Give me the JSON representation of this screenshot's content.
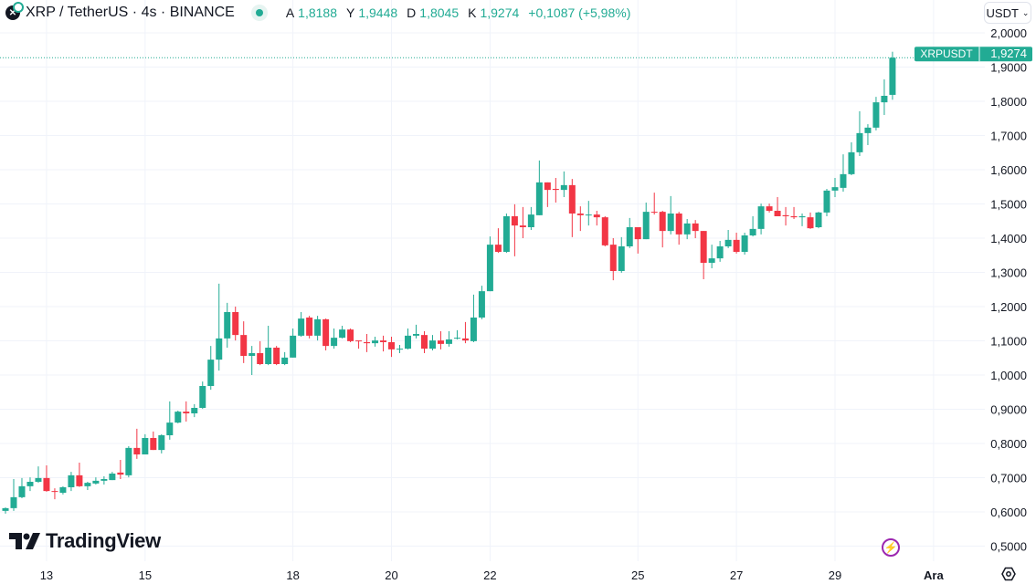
{
  "header": {
    "symbol_icon": "xrp-logo-icon",
    "title": "XRP / TetherUS · 4s · BINANCE",
    "status": "market-open-dot",
    "ohlc": [
      {
        "key": "A",
        "value": "1,8188"
      },
      {
        "key": "Y",
        "value": "1,9448"
      },
      {
        "key": "D",
        "value": "1,8045"
      },
      {
        "key": "K",
        "value": "1,9274"
      }
    ],
    "change": "+0,1087 (+5,98%)"
  },
  "currency_button": {
    "label": "USDT",
    "icon": "chevron-down-icon"
  },
  "brand": {
    "name": "TradingView"
  },
  "colors": {
    "up": "#22ab94",
    "down": "#f23645",
    "price_line": "#22ab94",
    "grid": "#f0f3fa",
    "accent": "#9c27b0"
  },
  "price_label": {
    "symbol": "XRPUSDT",
    "value": "1,9274"
  },
  "footer": {
    "settings_icon": "gear-icon",
    "bolt_icon": "lightning-icon"
  },
  "chart_data": {
    "type": "candlestick",
    "interval": "4s",
    "ohlc_order": [
      "open",
      "high",
      "low",
      "close"
    ],
    "candles": [
      [
        0.603,
        0.613,
        0.595,
        0.611
      ],
      [
        0.611,
        0.696,
        0.603,
        0.643
      ],
      [
        0.643,
        0.699,
        0.64,
        0.675
      ],
      [
        0.675,
        0.701,
        0.661,
        0.688
      ],
      [
        0.688,
        0.733,
        0.685,
        0.699
      ],
      [
        0.699,
        0.736,
        0.659,
        0.661
      ],
      [
        0.661,
        0.669,
        0.637,
        0.659
      ],
      [
        0.656,
        0.675,
        0.651,
        0.672
      ],
      [
        0.672,
        0.717,
        0.661,
        0.707
      ],
      [
        0.707,
        0.744,
        0.673,
        0.675
      ],
      [
        0.675,
        0.688,
        0.664,
        0.685
      ],
      [
        0.683,
        0.701,
        0.68,
        0.691
      ],
      [
        0.691,
        0.704,
        0.68,
        0.696
      ],
      [
        0.693,
        0.717,
        0.693,
        0.712
      ],
      [
        0.715,
        0.752,
        0.696,
        0.709
      ],
      [
        0.707,
        0.792,
        0.701,
        0.787
      ],
      [
        0.787,
        0.843,
        0.755,
        0.768
      ],
      [
        0.768,
        0.827,
        0.768,
        0.816
      ],
      [
        0.816,
        0.835,
        0.781,
        0.781
      ],
      [
        0.781,
        0.827,
        0.771,
        0.824
      ],
      [
        0.824,
        0.923,
        0.811,
        0.861
      ],
      [
        0.861,
        0.896,
        0.859,
        0.893
      ],
      [
        0.893,
        0.923,
        0.864,
        0.888
      ],
      [
        0.888,
        0.915,
        0.877,
        0.904
      ],
      [
        0.904,
        0.981,
        0.901,
        0.968
      ],
      [
        0.968,
        1.085,
        0.957,
        1.045
      ],
      [
        1.045,
        1.267,
        1.013,
        1.107
      ],
      [
        1.107,
        1.211,
        1.08,
        1.184
      ],
      [
        1.184,
        1.2,
        1.101,
        1.117
      ],
      [
        1.117,
        1.157,
        1.035,
        1.056
      ],
      [
        1.056,
        1.085,
        1.0,
        1.064
      ],
      [
        1.064,
        1.099,
        1.029,
        1.032
      ],
      [
        1.032,
        1.144,
        1.029,
        1.08
      ],
      [
        1.08,
        1.085,
        1.029,
        1.032
      ],
      [
        1.032,
        1.067,
        1.029,
        1.051
      ],
      [
        1.051,
        1.136,
        1.051,
        1.115
      ],
      [
        1.115,
        1.184,
        1.112,
        1.165
      ],
      [
        1.168,
        1.173,
        1.107,
        1.115
      ],
      [
        1.115,
        1.173,
        1.101,
        1.163
      ],
      [
        1.163,
        1.165,
        1.072,
        1.085
      ],
      [
        1.085,
        1.136,
        1.077,
        1.109
      ],
      [
        1.109,
        1.144,
        1.107,
        1.133
      ],
      [
        1.133,
        1.136,
        1.096,
        1.099
      ],
      [
        1.101,
        1.101,
        1.077,
        1.099
      ],
      [
        1.096,
        1.12,
        1.067,
        1.093
      ],
      [
        1.093,
        1.112,
        1.083,
        1.101
      ],
      [
        1.101,
        1.115,
        1.069,
        1.096
      ],
      [
        1.096,
        1.112,
        1.053,
        1.075
      ],
      [
        1.075,
        1.088,
        1.064,
        1.077
      ],
      [
        1.077,
        1.136,
        1.075,
        1.115
      ],
      [
        1.115,
        1.147,
        1.107,
        1.12
      ],
      [
        1.117,
        1.128,
        1.064,
        1.077
      ],
      [
        1.077,
        1.117,
        1.072,
        1.101
      ],
      [
        1.101,
        1.128,
        1.075,
        1.091
      ],
      [
        1.091,
        1.128,
        1.083,
        1.104
      ],
      [
        1.107,
        1.131,
        1.104,
        1.109
      ],
      [
        1.107,
        1.155,
        1.093,
        1.101
      ],
      [
        1.099,
        1.235,
        1.096,
        1.168
      ],
      [
        1.168,
        1.261,
        1.163,
        1.245
      ],
      [
        1.245,
        1.405,
        1.245,
        1.381
      ],
      [
        1.381,
        1.429,
        1.357,
        1.36
      ],
      [
        1.36,
        1.472,
        1.357,
        1.464
      ],
      [
        1.464,
        1.499,
        1.347,
        1.437
      ],
      [
        1.437,
        1.491,
        1.4,
        1.432
      ],
      [
        1.432,
        1.491,
        1.424,
        1.469
      ],
      [
        1.467,
        1.627,
        1.467,
        1.563
      ],
      [
        1.563,
        1.563,
        1.491,
        1.541
      ],
      [
        1.544,
        1.576,
        1.504,
        1.541
      ],
      [
        1.541,
        1.595,
        1.52,
        1.555
      ],
      [
        1.555,
        1.573,
        1.403,
        1.472
      ],
      [
        1.472,
        1.493,
        1.421,
        1.467
      ],
      [
        1.467,
        1.509,
        1.437,
        1.469
      ],
      [
        1.469,
        1.48,
        1.437,
        1.461
      ],
      [
        1.461,
        1.464,
        1.376,
        1.379
      ],
      [
        1.381,
        1.4,
        1.277,
        1.304
      ],
      [
        1.304,
        1.403,
        1.299,
        1.376
      ],
      [
        1.376,
        1.459,
        1.371,
        1.432
      ],
      [
        1.432,
        1.432,
        1.355,
        1.397
      ],
      [
        1.397,
        1.504,
        1.397,
        1.477
      ],
      [
        1.477,
        1.533,
        1.469,
        1.475
      ],
      [
        1.477,
        1.48,
        1.373,
        1.421
      ],
      [
        1.421,
        1.523,
        1.411,
        1.472
      ],
      [
        1.472,
        1.477,
        1.381,
        1.411
      ],
      [
        1.411,
        1.456,
        1.397,
        1.443
      ],
      [
        1.443,
        1.453,
        1.4,
        1.421
      ],
      [
        1.421,
        1.421,
        1.28,
        1.328
      ],
      [
        1.328,
        1.381,
        1.312,
        1.341
      ],
      [
        1.341,
        1.392,
        1.331,
        1.376
      ],
      [
        1.376,
        1.424,
        1.371,
        1.395
      ],
      [
        1.395,
        1.416,
        1.355,
        1.36
      ],
      [
        1.36,
        1.416,
        1.352,
        1.408
      ],
      [
        1.408,
        1.464,
        1.405,
        1.427
      ],
      [
        1.427,
        1.501,
        1.411,
        1.493
      ],
      [
        1.493,
        1.501,
        1.475,
        1.48
      ],
      [
        1.48,
        1.52,
        1.464,
        1.464
      ],
      [
        1.467,
        1.491,
        1.437,
        1.464
      ],
      [
        1.464,
        1.491,
        1.456,
        1.461
      ],
      [
        1.461,
        1.472,
        1.435,
        1.464
      ],
      [
        1.461,
        1.475,
        1.427,
        1.429
      ],
      [
        1.432,
        1.477,
        1.429,
        1.475
      ],
      [
        1.475,
        1.544,
        1.464,
        1.539
      ],
      [
        1.539,
        1.576,
        1.52,
        1.549
      ],
      [
        1.547,
        1.645,
        1.536,
        1.587
      ],
      [
        1.587,
        1.68,
        1.584,
        1.651
      ],
      [
        1.651,
        1.771,
        1.64,
        1.707
      ],
      [
        1.707,
        1.733,
        1.672,
        1.723
      ],
      [
        1.723,
        1.813,
        1.715,
        1.797
      ],
      [
        1.797,
        1.864,
        1.76,
        1.816
      ],
      [
        1.8188,
        1.9448,
        1.8045,
        1.9274
      ]
    ],
    "ylim": [
      0.5,
      2.0
    ],
    "y_ticks": [
      "2,0000",
      "1,9000",
      "1,8000",
      "1,7000",
      "1,6000",
      "1,5000",
      "1,4000",
      "1,3000",
      "1,2000",
      "1,1000",
      "1,0000",
      "0,9000",
      "0,8000",
      "0,7000",
      "0,6000",
      "0,5000"
    ],
    "x_ticks": [
      {
        "label": "13",
        "at_candle": 5
      },
      {
        "label": "15",
        "at_candle": 17
      },
      {
        "label": "18",
        "at_candle": 35
      },
      {
        "label": "20",
        "at_candle": 47
      },
      {
        "label": "22",
        "at_candle": 59
      },
      {
        "label": "25",
        "at_candle": 77
      },
      {
        "label": "27",
        "at_candle": 89
      },
      {
        "label": "29",
        "at_candle": 101
      },
      {
        "label": "Ara",
        "at_candle": 113,
        "bold": true
      }
    ],
    "last_price": 1.9274,
    "grid": true,
    "price_axis": "right"
  }
}
